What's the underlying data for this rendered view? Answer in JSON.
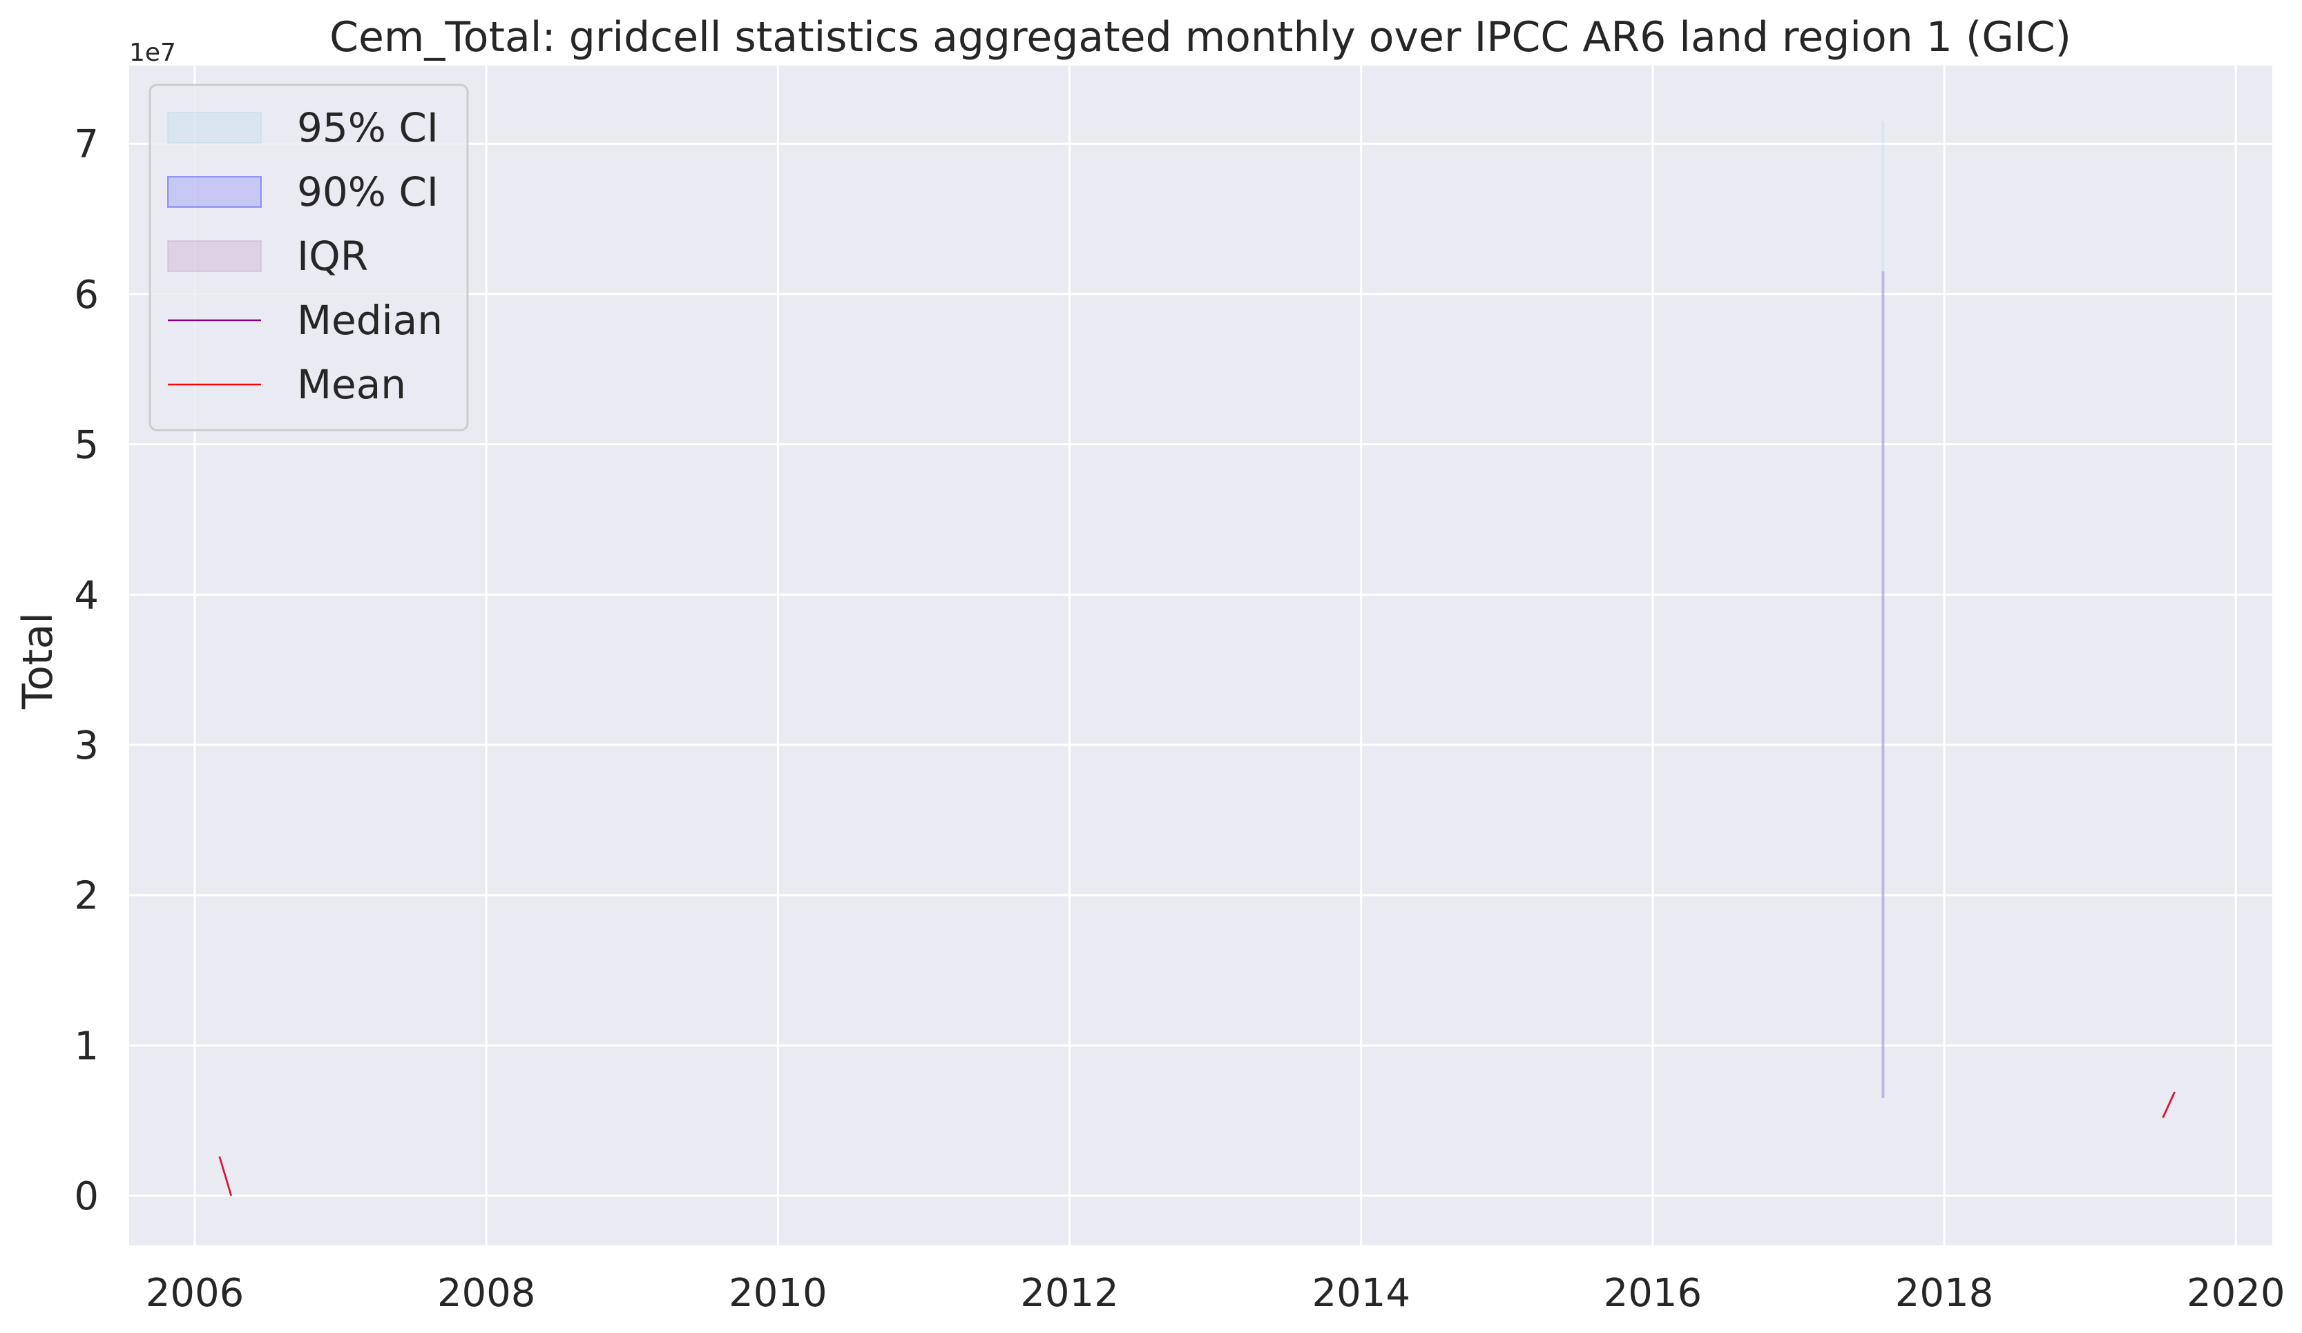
{
  "chart_data": {
    "type": "line",
    "title": "Cem_Total: gridcell statistics aggregated monthly over IPCC AR6 land region 1 (GIC)",
    "xlabel": "",
    "ylabel": "Total",
    "y_scale_label": "1e7",
    "xlim": [
      2005.55,
      2020.25
    ],
    "ylim": [
      -3300000,
      75200000
    ],
    "x_ticks": [
      2006,
      2008,
      2010,
      2012,
      2014,
      2016,
      2018,
      2020
    ],
    "x_tick_labels": [
      "2006",
      "2008",
      "2010",
      "2012",
      "2014",
      "2016",
      "2018",
      "2020"
    ],
    "y_ticks": [
      0,
      10000000,
      20000000,
      30000000,
      40000000,
      50000000,
      60000000,
      70000000
    ],
    "y_tick_labels": [
      "0",
      "1",
      "2",
      "3",
      "4",
      "5",
      "6",
      "7"
    ],
    "grid": true,
    "legend": {
      "position": "top-left",
      "entries": [
        {
          "label": "95% CI",
          "kind": "band",
          "color": "#add8e6"
        },
        {
          "label": "90% CI",
          "kind": "band",
          "color": "#0000ff"
        },
        {
          "label": "IQR",
          "kind": "band",
          "color": "#c09abf"
        },
        {
          "label": "Median",
          "kind": "line",
          "color": "#800080"
        },
        {
          "label": "Mean",
          "kind": "line",
          "color": "#ff0000"
        }
      ]
    },
    "bands": [
      {
        "name": "95% CI",
        "color": "#add8e6",
        "opacity": 0.25,
        "x": [
          2017.58,
          2017.58
        ],
        "low": [
          6500000,
          6500000
        ],
        "high": [
          71500000,
          71500000
        ]
      },
      {
        "name": "90% CI",
        "color": "#0000ff",
        "opacity": 0.15,
        "x": [
          2017.58,
          2017.58
        ],
        "low": [
          6500000,
          6500000
        ],
        "high": [
          61500000,
          61500000
        ]
      },
      {
        "name": "IQR",
        "color": "#c09abf",
        "opacity": 0.3,
        "x": [
          2017.58,
          2017.58
        ],
        "low": [
          6500000,
          6500000
        ],
        "high": [
          61500000,
          61500000
        ]
      }
    ],
    "series": [
      {
        "name": "Median",
        "color": "#800080",
        "segments": [
          {
            "x": [
              2006.17,
              2006.25
            ],
            "y": [
              2600000,
              0
            ]
          },
          {
            "x": [
              2019.5,
              2019.58
            ],
            "y": [
              5200000,
              6900000
            ]
          }
        ]
      },
      {
        "name": "Mean",
        "color": "#e0102f",
        "segments": [
          {
            "x": [
              2006.17,
              2006.25
            ],
            "y": [
              2600000,
              0
            ]
          },
          {
            "x": [
              2019.5,
              2019.58
            ],
            "y": [
              5200000,
              6900000
            ]
          }
        ]
      }
    ]
  }
}
